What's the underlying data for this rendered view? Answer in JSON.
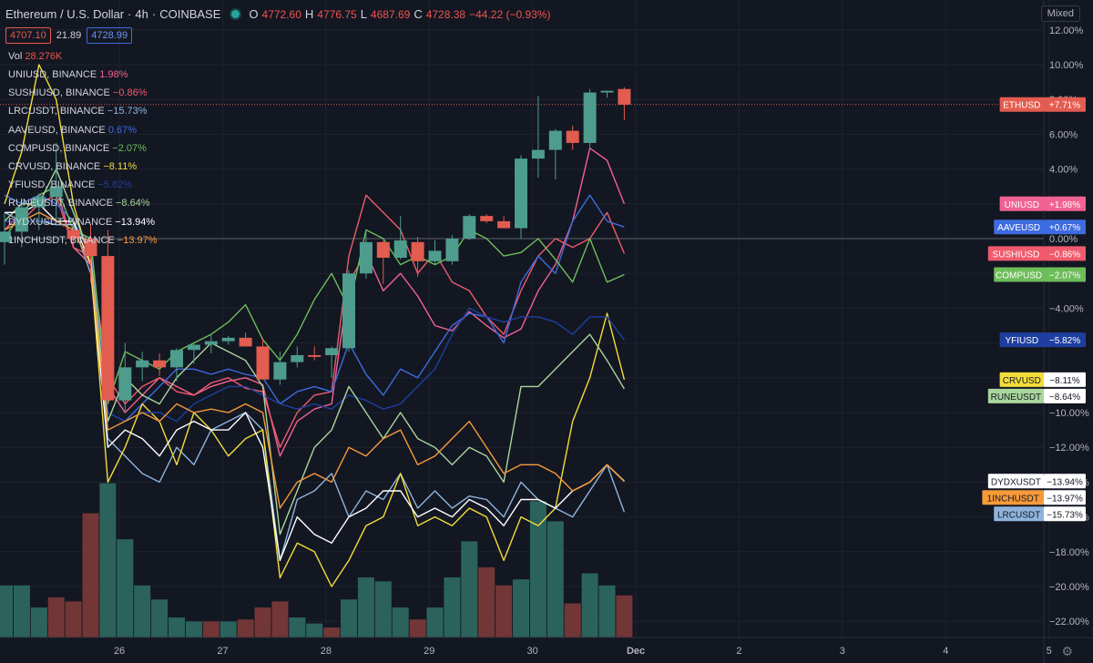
{
  "header": {
    "symbol": "Ethereum / U.S. Dollar",
    "interval": "4h",
    "exchange": "COINBASE",
    "o_label": "O",
    "o": "4772.60",
    "h_label": "H",
    "h": "4776.75",
    "l_label": "L",
    "l": "4687.69",
    "c_label": "C",
    "c": "4728.38",
    "change": "−44.22 (−0.93%)",
    "bid": "4707.10",
    "spread": "21.89",
    "ask": "4728.99"
  },
  "volume": {
    "label": "Vol",
    "value": "28.276K"
  },
  "mixed_label": "Mixed",
  "colors": {
    "up": "#4e9c8d",
    "down": "#e25c4f",
    "bg": "#131722"
  },
  "chart_data": {
    "type": "line",
    "title": "Ethereum / U.S. Dollar",
    "y_unit": "%",
    "ylim": [
      -23,
      13
    ],
    "y_ticks": [
      "12.00%",
      "10.00%",
      "8.00%",
      "6.00%",
      "4.00%",
      "2.00%",
      "0.00%",
      "−2.00%",
      "−4.00%",
      "−6.00%",
      "−8.00%",
      "−10.00%",
      "−12.00%",
      "−14.00%",
      "−16.00%",
      "−18.00%",
      "−20.00%",
      "−22.00%"
    ],
    "y_tick_values": [
      12,
      10,
      8,
      6,
      4,
      2,
      0,
      -2,
      -4,
      -6,
      -8,
      -10,
      -12,
      -14,
      -16,
      -18,
      -20,
      -22
    ],
    "x_ticks": [
      "26",
      "27",
      "28",
      "29",
      "30",
      "Dec",
      "2",
      "3",
      "4",
      "5"
    ],
    "x_tick_values": [
      6.67,
      12.67,
      18.67,
      24.67,
      30.67,
      36.67,
      42.67,
      48.67,
      54.67,
      60.67
    ],
    "xlim": [
      0.5,
      64
    ],
    "grid": true,
    "candles": [
      [
        0,
        -0.2,
        1.5,
        -1.5,
        0.4
      ],
      [
        1,
        0.4,
        2.3,
        -0.5,
        1.8
      ],
      [
        2,
        1.8,
        2.6,
        0.5,
        2.4
      ],
      [
        3,
        2.4,
        5.5,
        1.0,
        3.0
      ],
      [
        4,
        0.5,
        1.2,
        -0.4,
        0.0
      ],
      [
        5,
        0.0,
        0.8,
        -2.5,
        -1.0
      ],
      [
        6,
        -1.0,
        0.5,
        -9.5,
        -9.3
      ],
      [
        7,
        -9.3,
        -6.0,
        -10.0,
        -7.4
      ],
      [
        8,
        -7.4,
        -6.5,
        -8.2,
        -7.0
      ],
      [
        9,
        -7.0,
        -6.6,
        -7.9,
        -7.4
      ],
      [
        10,
        -7.4,
        -6.3,
        -8.2,
        -6.4
      ],
      [
        11,
        -6.4,
        -6.0,
        -7.2,
        -6.1
      ],
      [
        12,
        -6.1,
        -5.5,
        -6.6,
        -5.9
      ],
      [
        13,
        -5.9,
        -5.6,
        -6.1,
        -5.7
      ],
      [
        14,
        -5.7,
        -5.4,
        -6.0,
        -6.2
      ],
      [
        15,
        -6.2,
        -5.7,
        -7.8,
        -8.1
      ],
      [
        16,
        -8.1,
        -6.5,
        -8.4,
        -7.1
      ],
      [
        17,
        -7.1,
        -6.2,
        -7.4,
        -6.7
      ],
      [
        18,
        -6.7,
        -6.2,
        -7.0,
        -6.8
      ],
      [
        19,
        -6.7,
        -6.2,
        -8.0,
        -6.3
      ],
      [
        20,
        -6.3,
        -1.8,
        -6.5,
        -2.0
      ],
      [
        21,
        -2.0,
        0.5,
        -2.3,
        -0.2
      ],
      [
        22,
        -0.2,
        -0.1,
        -2.6,
        -1.1
      ],
      [
        23,
        -1.1,
        1.3,
        -1.2,
        -0.1
      ],
      [
        24,
        -0.2,
        0.1,
        -2.2,
        -1.3
      ],
      [
        25,
        -1.3,
        -0.1,
        -1.5,
        -0.7
      ],
      [
        26,
        -1.3,
        0.2,
        -1.5,
        0.0
      ],
      [
        27,
        0.0,
        1.4,
        -0.1,
        1.3
      ],
      [
        28,
        1.3,
        1.4,
        0.9,
        1.0
      ],
      [
        29,
        1.0,
        1.3,
        0.6,
        0.6
      ],
      [
        30,
        0.6,
        4.8,
        0.0,
        4.6
      ],
      [
        31,
        4.6,
        8.2,
        3.5,
        5.1
      ],
      [
        32,
        5.1,
        6.3,
        3.4,
        6.2
      ],
      [
        33,
        6.2,
        6.5,
        5.1,
        5.5
      ],
      [
        34,
        5.5,
        8.6,
        5.1,
        8.4
      ],
      [
        35,
        8.4,
        8.5,
        8.1,
        8.5
      ],
      [
        36,
        8.6,
        8.7,
        6.8,
        7.7
      ]
    ],
    "volume_bars": [
      [
        0,
        2.6,
        "up"
      ],
      [
        1,
        2.6,
        "up"
      ],
      [
        2,
        1.5,
        "up"
      ],
      [
        3,
        2.0,
        "down"
      ],
      [
        4,
        1.8,
        "down"
      ],
      [
        5,
        6.2,
        "down"
      ],
      [
        6,
        7.7,
        "up"
      ],
      [
        7,
        4.9,
        "up"
      ],
      [
        8,
        2.6,
        "up"
      ],
      [
        9,
        1.9,
        "up"
      ],
      [
        10,
        1.0,
        "up"
      ],
      [
        11,
        0.8,
        "up"
      ],
      [
        12,
        0.8,
        "down"
      ],
      [
        13,
        0.8,
        "up"
      ],
      [
        14,
        0.9,
        "down"
      ],
      [
        15,
        1.5,
        "down"
      ],
      [
        16,
        1.8,
        "down"
      ],
      [
        17,
        1.0,
        "up"
      ],
      [
        18,
        0.7,
        "up"
      ],
      [
        19,
        0.5,
        "down"
      ],
      [
        20,
        1.9,
        "up"
      ],
      [
        21,
        3.0,
        "up"
      ],
      [
        22,
        2.8,
        "up"
      ],
      [
        23,
        1.5,
        "up"
      ],
      [
        24,
        0.9,
        "down"
      ],
      [
        25,
        1.5,
        "up"
      ],
      [
        26,
        3.0,
        "up"
      ],
      [
        27,
        4.8,
        "up"
      ],
      [
        28,
        3.5,
        "down"
      ],
      [
        29,
        2.6,
        "down"
      ],
      [
        30,
        2.9,
        "up"
      ],
      [
        31,
        6.8,
        "up"
      ],
      [
        32,
        5.8,
        "up"
      ],
      [
        33,
        1.7,
        "down"
      ],
      [
        34,
        3.2,
        "up"
      ],
      [
        35,
        2.6,
        "up"
      ],
      [
        36,
        2.1,
        "down"
      ]
    ],
    "series": [
      {
        "name": "UNIUSD, BINANCE",
        "change": "1.98%",
        "tag": "UNIUSD",
        "tag_value": "+1.98%",
        "color": "#f06292",
        "values": [
          0.5,
          1.5,
          2.5,
          3.0,
          -0.5,
          -1.5,
          -8.5,
          -10.0,
          -9.0,
          -8.0,
          -8.5,
          -9.0,
          -8.5,
          -8.2,
          -8.0,
          -8.4,
          -12.5,
          -10.5,
          -9.8,
          -9.5,
          -2.5,
          -0.8,
          -3.0,
          -2.0,
          -3.3,
          -5.0,
          -5.3,
          -4.2,
          -5.0,
          -5.7,
          -5.2,
          -3.0,
          -1.5,
          1.0,
          5.2,
          4.5,
          2.0
        ]
      },
      {
        "name": "SUSHIUSD, BINANCE",
        "change": "−0.86%",
        "tag": "SUSHIUSD",
        "tag_value": "−0.86%",
        "color": "#ef5b6d",
        "values": [
          1.0,
          1.0,
          2.0,
          2.5,
          -0.5,
          -1.0,
          -8.0,
          -9.5,
          -8.5,
          -8.0,
          -8.8,
          -9.0,
          -8.3,
          -8.0,
          -8.6,
          -8.8,
          -12.0,
          -10.0,
          -9.0,
          -8.8,
          -1.0,
          2.5,
          1.5,
          0.5,
          -2.0,
          -0.8,
          -2.5,
          -3.0,
          -4.5,
          -5.5,
          -3.0,
          -1.0,
          0.0,
          -0.5,
          0.0,
          1.5,
          -0.86
        ]
      },
      {
        "name": "LRCUSDT, BINANCE",
        "change": "−15.73%",
        "tag": "LRCUSDT",
        "tag_value": "−15.73%",
        "color": "#8fb3dd",
        "values": [
          1.5,
          1.0,
          1.0,
          0.8,
          0.8,
          -2.0,
          -11.5,
          -12.5,
          -13.5,
          -14.0,
          -12.0,
          -13.0,
          -11.0,
          -10.5,
          -10.0,
          -11.0,
          -18.5,
          -15.0,
          -14.5,
          -13.5,
          -16.0,
          -14.5,
          -15.0,
          -13.5,
          -15.5,
          -14.5,
          -15.5,
          -14.8,
          -15.0,
          -16.0,
          -14.0,
          -15.0,
          -15.5,
          -16.0,
          -14.5,
          -13.0,
          -15.73
        ]
      },
      {
        "name": "AAVEUSD, BINANCE",
        "change": "0.67%",
        "tag": "AAVEUSD",
        "tag_value": "+0.67%",
        "color": "#3d6be0",
        "values": [
          2.5,
          2.0,
          2.5,
          2.0,
          1.0,
          -0.8,
          -10.0,
          -10.5,
          -9.5,
          -8.5,
          -7.5,
          -7.5,
          -7.8,
          -7.5,
          -7.8,
          -8.0,
          -9.5,
          -8.8,
          -8.5,
          -8.8,
          -6.0,
          -7.8,
          -9.0,
          -7.5,
          -8.0,
          -6.5,
          -5.0,
          -4.3,
          -4.5,
          -6.0,
          -2.5,
          -1.0,
          -2.0,
          1.0,
          2.5,
          1.0,
          0.67
        ]
      },
      {
        "name": "COMPUSD, BINANCE",
        "change": "−2.07%",
        "tag": "COMPUSD",
        "tag_value": "−2.07%",
        "color": "#6dbd5a",
        "values": [
          0.0,
          1.5,
          2.5,
          3.0,
          0.5,
          0.0,
          -9.5,
          -6.5,
          -7.0,
          -7.5,
          -6.5,
          -6.0,
          -5.5,
          -4.8,
          -3.8,
          -5.8,
          -7.0,
          -5.5,
          -3.5,
          -2.0,
          -4.0,
          0.5,
          0.0,
          -1.5,
          -1.0,
          -1.5,
          -1.0,
          0.5,
          0.0,
          -1.0,
          -0.8,
          0.0,
          -1.2,
          -2.5,
          0.0,
          -2.5,
          -2.07
        ]
      },
      {
        "name": "CRVUSD, BINANCE",
        "change": "−8.11%",
        "tag": "CRVUSD",
        "tag_value": "−8.11%",
        "color": "#f2dd3a",
        "values": [
          2.0,
          5.0,
          10.0,
          8.0,
          2.0,
          -1.5,
          -14.0,
          -12.0,
          -9.5,
          -10.5,
          -13.0,
          -10.0,
          -11.0,
          -12.5,
          -11.5,
          -11.0,
          -19.5,
          -17.5,
          -18.0,
          -20.0,
          -18.5,
          -16.5,
          -16.0,
          -13.5,
          -16.5,
          -16.0,
          -16.5,
          -15.5,
          -16.0,
          -18.5,
          -16.0,
          -16.5,
          -15.5,
          -10.5,
          -8.0,
          -4.3,
          -8.11
        ]
      },
      {
        "name": "YFIUSD, BINANCE",
        "change": "−5.82%",
        "tag": "YFIUSD",
        "tag_value": "−5.82%",
        "color": "#1e3fa0",
        "values": [
          1.0,
          1.0,
          1.0,
          1.0,
          0.5,
          -1.5,
          -10.0,
          -10.5,
          -10.0,
          -10.0,
          -10.5,
          -9.5,
          -9.0,
          -8.5,
          -8.5,
          -9.0,
          -9.5,
          -9.8,
          -9.5,
          -9.8,
          -9.0,
          -9.3,
          -9.8,
          -9.5,
          -8.5,
          -7.5,
          -5.5,
          -4.0,
          -4.5,
          -4.8,
          -4.5,
          -4.5,
          -4.8,
          -5.5,
          -4.5,
          -4.5,
          -5.82
        ]
      },
      {
        "name": "RUNEUSDT, BINANCE",
        "change": "−8.64%",
        "tag": "RUNEUSDT",
        "tag_value": "−8.64%",
        "color": "#a9d69c",
        "values": [
          1.0,
          2.0,
          2.0,
          4.0,
          1.5,
          -1.0,
          -10.5,
          -8.0,
          -9.0,
          -9.5,
          -8.0,
          -7.0,
          -6.0,
          -6.5,
          -7.0,
          -8.5,
          -17.0,
          -14.5,
          -12.0,
          -11.0,
          -8.5,
          -10.0,
          -11.5,
          -10.0,
          -11.5,
          -12.0,
          -13.0,
          -12.0,
          -12.5,
          -14.0,
          -8.5,
          -8.5,
          -7.5,
          -6.5,
          -5.5,
          -7.0,
          -8.64
        ]
      },
      {
        "name": "DYDXUSDT, BINANCE",
        "change": "−13.94%",
        "tag": "DYDXUSDT",
        "tag_value": "−13.94%",
        "color": "#ffffff",
        "values": [
          1.5,
          1.5,
          2.0,
          1.0,
          1.0,
          -1.5,
          -12.0,
          -11.0,
          -11.5,
          -12.5,
          -11.0,
          -10.5,
          -11.0,
          -11.0,
          -10.0,
          -12.0,
          -18.5,
          -16.0,
          -17.0,
          -17.5,
          -16.0,
          -15.5,
          -14.5,
          -14.5,
          -16.0,
          -15.5,
          -16.0,
          -15.0,
          -15.5,
          -16.5,
          -15.0,
          -15.0,
          -15.5,
          -14.5,
          -14.0,
          -13.0,
          -13.94
        ]
      },
      {
        "name": "1INCHUSDT, BINANCE",
        "change": "−13.97%",
        "tag": "1INCHUSDT",
        "tag_value": "−13.97%",
        "color": "#f79a3a",
        "values": [
          0.5,
          1.0,
          1.5,
          1.0,
          0.5,
          -1.5,
          -11.0,
          -10.5,
          -10.0,
          -10.5,
          -9.5,
          -10.0,
          -9.8,
          -10.0,
          -9.5,
          -10.0,
          -15.5,
          -14.0,
          -13.5,
          -14.0,
          -12.0,
          -12.5,
          -11.5,
          -11.0,
          -13.0,
          -12.5,
          -11.5,
          -10.5,
          -12.0,
          -13.5,
          -13.0,
          -13.0,
          -13.5,
          -14.5,
          -14.0,
          -13.0,
          -13.97
        ]
      }
    ],
    "eth_tag": "ETHUSD",
    "eth_tag_value": "+7.71%",
    "eth_last": 7.71
  }
}
